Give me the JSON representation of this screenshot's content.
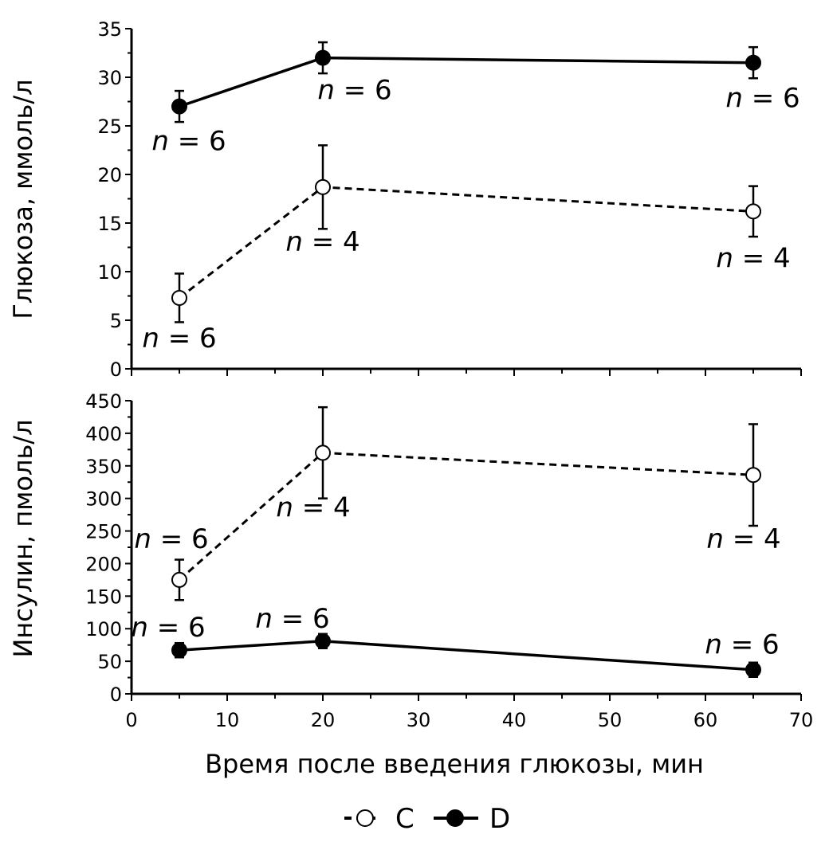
{
  "chart_data": [
    {
      "type": "line",
      "ylabel": "Глюкоза, ммоль/л",
      "ylim": [
        0,
        35
      ],
      "yticks": [
        "0",
        "5",
        "10",
        "15",
        "20",
        "25",
        "30",
        "35"
      ],
      "xlim": [
        0,
        70
      ],
      "series": [
        {
          "name": "C",
          "style": "dashed-open",
          "points": [
            {
              "x": 5,
              "y": 7.3,
              "err": 2.5,
              "n_text": "n = 6"
            },
            {
              "x": 20,
              "y": 18.7,
              "err": 4.3,
              "n_text": "n = 4"
            },
            {
              "x": 65,
              "y": 16.2,
              "err": 2.6,
              "n_text": "n = 4"
            }
          ]
        },
        {
          "name": "D",
          "style": "solid-filled",
          "points": [
            {
              "x": 5,
              "y": 27.0,
              "err": 1.6,
              "n_text": "n = 6"
            },
            {
              "x": 20,
              "y": 32.0,
              "err": 1.6,
              "n_text": "n = 6"
            },
            {
              "x": 65,
              "y": 31.5,
              "err": 1.6,
              "n_text": "n = 6"
            }
          ]
        }
      ]
    },
    {
      "type": "line",
      "ylabel": "Инсулин, пмоль/л",
      "xlabel": "Время после введения глюкозы, мин",
      "ylim": [
        0,
        450
      ],
      "yticks": [
        "0",
        "50",
        "100",
        "150",
        "200",
        "250",
        "300",
        "350",
        "400",
        "450"
      ],
      "xlim": [
        0,
        70
      ],
      "xticks": [
        "0",
        "10",
        "20",
        "30",
        "40",
        "50",
        "60",
        "70"
      ],
      "series": [
        {
          "name": "C",
          "style": "dashed-open",
          "points": [
            {
              "x": 5,
              "y": 175,
              "err": 31,
              "n_text": "n = 6"
            },
            {
              "x": 20,
              "y": 370,
              "err": 70,
              "n_text": "n = 4"
            },
            {
              "x": 65,
              "y": 336,
              "err": 78,
              "n_text": "n = 4"
            }
          ]
        },
        {
          "name": "D",
          "style": "solid-filled",
          "points": [
            {
              "x": 5,
              "y": 67,
              "err": 11,
              "n_text": "n = 6"
            },
            {
              "x": 20,
              "y": 81,
              "err": 11,
              "n_text": "n = 6"
            },
            {
              "x": 65,
              "y": 37,
              "err": 11,
              "n_text": "n = 6"
            }
          ]
        }
      ]
    }
  ],
  "legend": [
    {
      "label": "C",
      "style": "dashed-open"
    },
    {
      "label": "D",
      "style": "solid-filled"
    }
  ]
}
